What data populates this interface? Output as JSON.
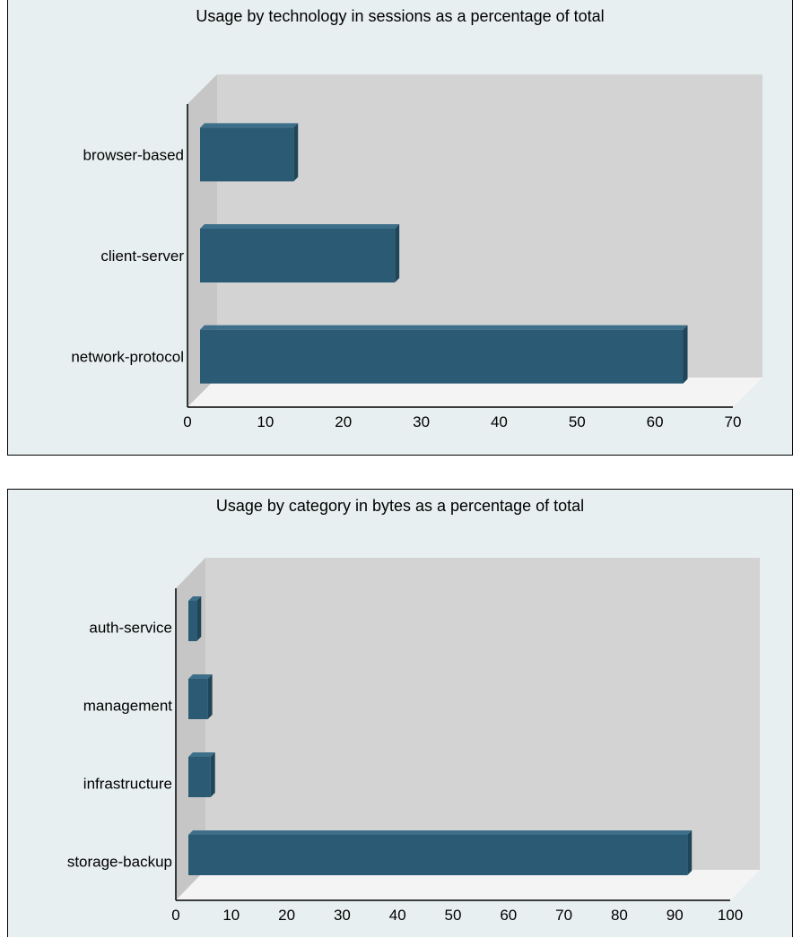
{
  "chart_data": [
    {
      "type": "bar",
      "orientation": "horizontal",
      "style": "3d",
      "title": "Usage by technology in sessions as a percentage of total",
      "categories": [
        "browser-based",
        "client-server",
        "network-protocol"
      ],
      "values": [
        12,
        25,
        62
      ],
      "xlim": [
        0,
        70
      ],
      "xticks": [
        0,
        10,
        20,
        30,
        40,
        50,
        60,
        70
      ],
      "bar_color": "#2b5a74"
    },
    {
      "type": "bar",
      "orientation": "horizontal",
      "style": "3d",
      "title": "Usage by category in bytes as a percentage of total",
      "categories": [
        "auth-service",
        "management",
        "infrastructure",
        "storage-backup"
      ],
      "values": [
        1.5,
        3.5,
        4,
        90
      ],
      "xlim": [
        0,
        100
      ],
      "xticks": [
        0,
        10,
        20,
        30,
        40,
        50,
        60,
        70,
        80,
        90,
        100
      ],
      "bar_color": "#2b5a74"
    }
  ]
}
